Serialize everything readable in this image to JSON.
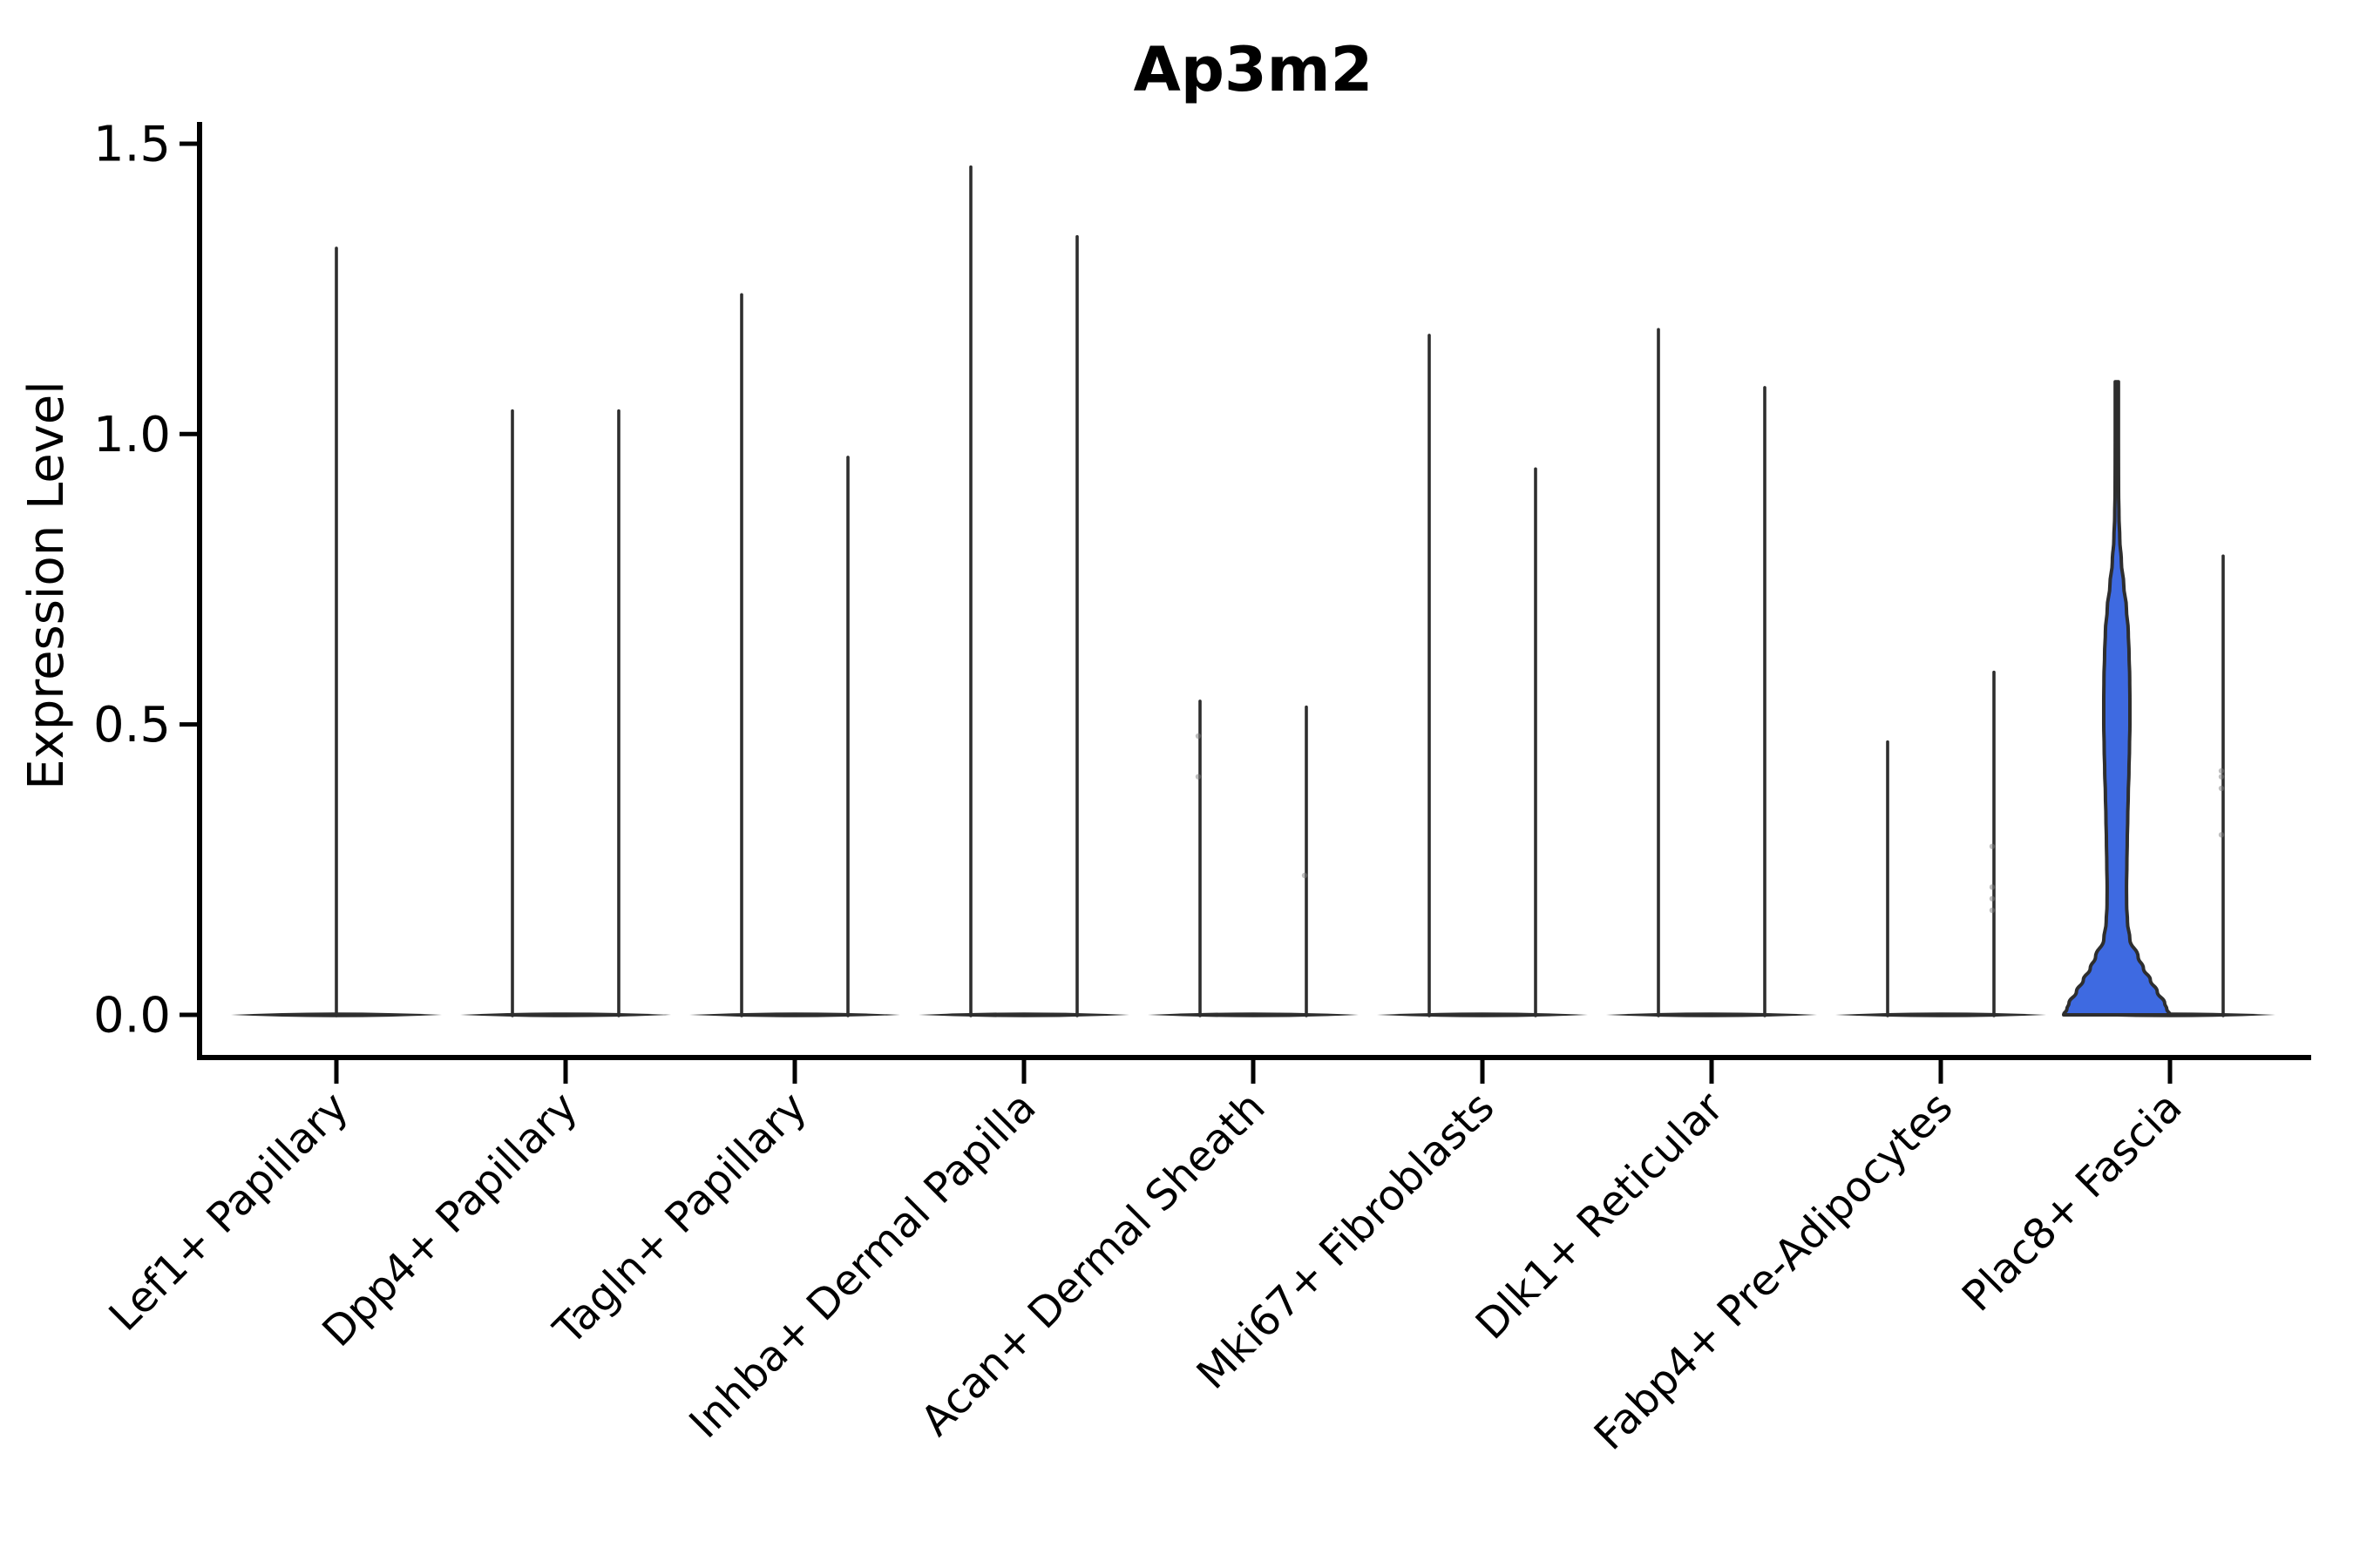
{
  "figure": {
    "background": "#ffffff"
  },
  "chart_data": {
    "type": "violin",
    "title": "Ap3m2",
    "ylabel": "Expression Level",
    "xlabel": "",
    "ylim": [
      0,
      1.5
    ],
    "grid": false,
    "legend": null,
    "yticks": [
      {
        "value": 0.0,
        "label": "0.0"
      },
      {
        "value": 0.5,
        "label": "0.5"
      },
      {
        "value": 1.0,
        "label": "1.0"
      },
      {
        "value": 1.5,
        "label": "1.5"
      }
    ],
    "categories": [
      "Lef1+ Papillary",
      "Dpp4+ Papillary",
      "Tagln+ Papillary",
      "Inhba+ Dermal Papilla",
      "Acan+ Dermal Sheath",
      "Mki67+ Fibroblasts",
      "Dlk1+ Reticular",
      "Fabp4+ Pre-Adipocytes",
      "Plac8+ Fascia"
    ],
    "colors": {
      "outline": "#2e2e2e",
      "highlight_fill": "#3e6ae1",
      "axis": "#000000",
      "jitter": "#808080"
    },
    "groups": [
      {
        "category": "Lef1+ Papillary",
        "violins": [
          {
            "slot": "center",
            "style": "spike",
            "max": 1.32
          }
        ]
      },
      {
        "category": "Dpp4+ Papillary",
        "violins": [
          {
            "slot": "left",
            "style": "spike",
            "max": 1.04
          },
          {
            "slot": "right",
            "style": "spike",
            "max": 1.04
          }
        ]
      },
      {
        "category": "Tagln+ Papillary",
        "violins": [
          {
            "slot": "left",
            "style": "spike",
            "max": 1.24
          },
          {
            "slot": "right",
            "style": "spike",
            "max": 0.96
          }
        ]
      },
      {
        "category": "Inhba+ Dermal Papilla",
        "violins": [
          {
            "slot": "left",
            "style": "spike",
            "max": 1.46
          },
          {
            "slot": "right",
            "style": "spike",
            "max": 1.34
          }
        ]
      },
      {
        "category": "Acan+ Dermal Sheath",
        "violins": [
          {
            "slot": "left",
            "style": "spike",
            "max": 0.54,
            "jitter": [
              0.48,
              0.41
            ]
          },
          {
            "slot": "right",
            "style": "spike",
            "max": 0.53,
            "jitter": [
              0.24
            ]
          }
        ]
      },
      {
        "category": "Mki67+ Fibroblasts",
        "violins": [
          {
            "slot": "left",
            "style": "spike",
            "max": 1.17
          },
          {
            "slot": "right",
            "style": "spike",
            "max": 0.94
          }
        ]
      },
      {
        "category": "Dlk1+ Reticular",
        "violins": [
          {
            "slot": "left",
            "style": "spike",
            "max": 1.18
          },
          {
            "slot": "right",
            "style": "spike",
            "max": 1.08
          }
        ]
      },
      {
        "category": "Fabp4+ Pre-Adipocytes",
        "violins": [
          {
            "slot": "left",
            "style": "spike",
            "max": 0.47
          },
          {
            "slot": "right",
            "style": "spike",
            "max": 0.59,
            "jitter": [
              0.29,
              0.22,
              0.2,
              0.18
            ]
          }
        ]
      },
      {
        "category": "Plac8+ Fascia",
        "violins": [
          {
            "slot": "left",
            "style": "violin",
            "max": 1.09,
            "fill": "highlight",
            "profile": [
              [
                0.0,
                1.0
              ],
              [
                0.01,
                0.94
              ],
              [
                0.02,
                0.9
              ],
              [
                0.04,
                0.76
              ],
              [
                0.06,
                0.63
              ],
              [
                0.08,
                0.5
              ],
              [
                0.1,
                0.4
              ],
              [
                0.13,
                0.245
              ],
              [
                0.16,
                0.2
              ],
              [
                0.19,
                0.184
              ],
              [
                0.22,
                0.182
              ],
              [
                0.26,
                0.189
              ],
              [
                0.3,
                0.196
              ],
              [
                0.34,
                0.205
              ],
              [
                0.38,
                0.215
              ],
              [
                0.42,
                0.228
              ],
              [
                0.46,
                0.238
              ],
              [
                0.5,
                0.246
              ],
              [
                0.54,
                0.246
              ],
              [
                0.58,
                0.242
              ],
              [
                0.62,
                0.23
              ],
              [
                0.66,
                0.215
              ],
              [
                0.7,
                0.18
              ],
              [
                0.74,
                0.13
              ],
              [
                0.78,
                0.085
              ],
              [
                0.82,
                0.055
              ],
              [
                0.86,
                0.04
              ],
              [
                0.9,
                0.033
              ],
              [
                0.95,
                0.031
              ],
              [
                1.0,
                0.03
              ],
              [
                1.09,
                0.03
              ]
            ]
          },
          {
            "slot": "right",
            "style": "spike",
            "max": 0.79,
            "jitter": [
              0.42,
              0.41,
              0.39,
              0.31
            ]
          }
        ]
      }
    ]
  }
}
